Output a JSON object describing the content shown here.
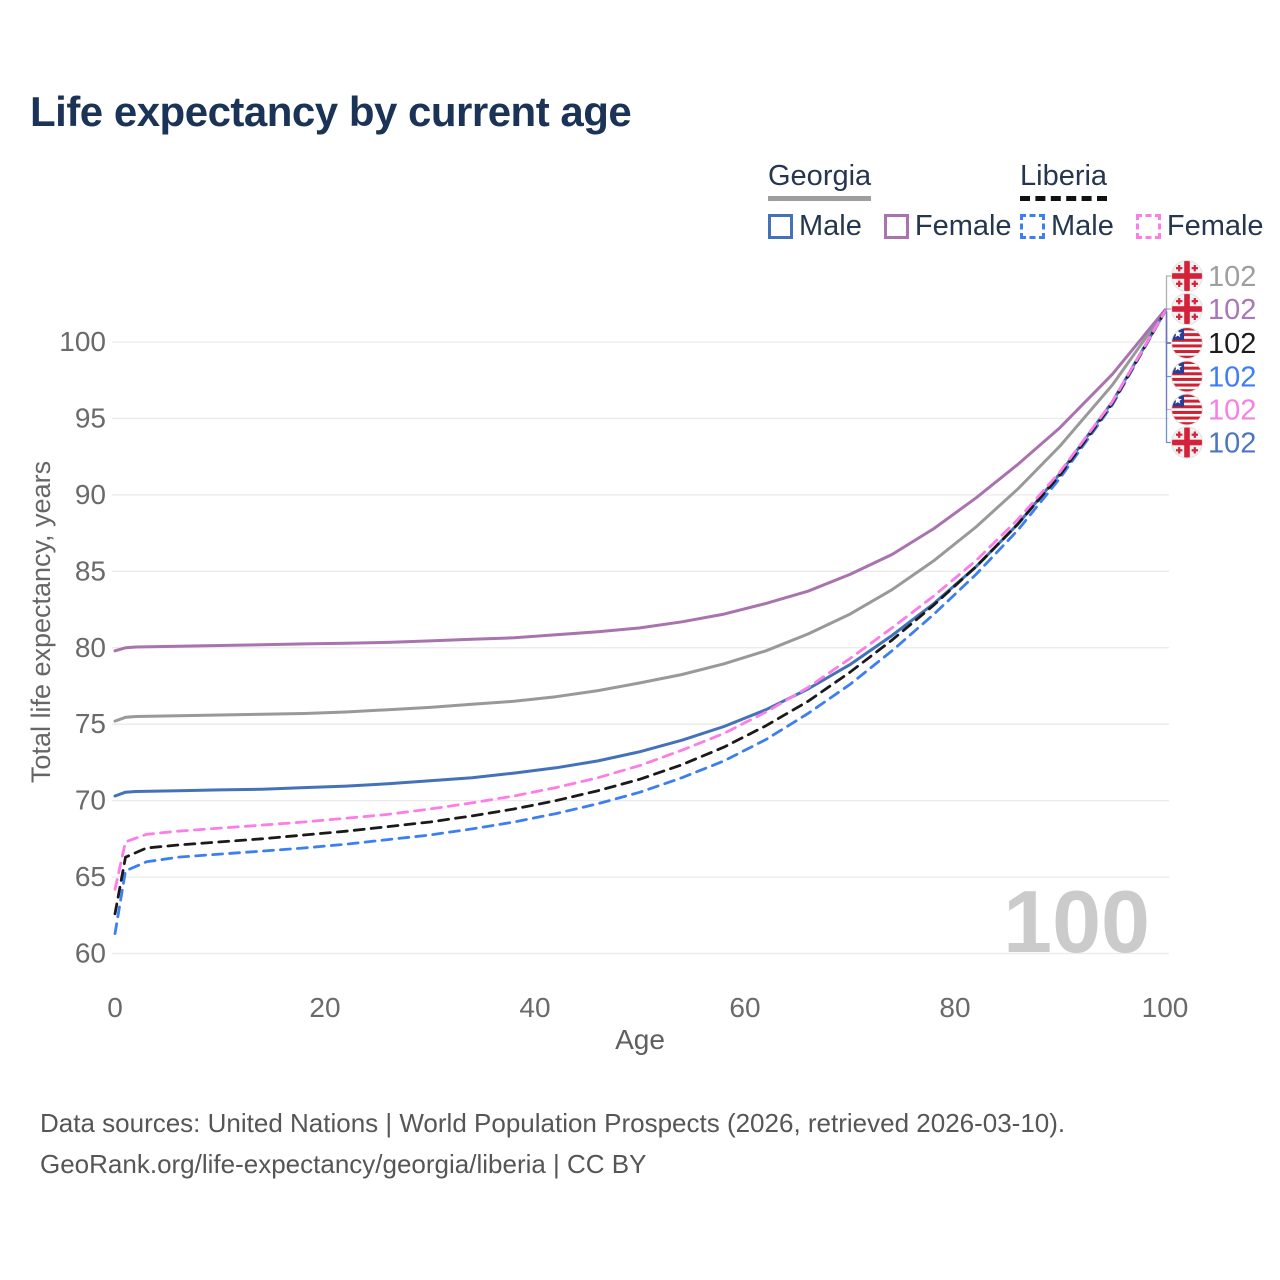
{
  "title": "Life expectancy by current age",
  "legend": {
    "groups": [
      {
        "country": "Georgia",
        "line_style": "solid",
        "rule_color": "#9e9e9e",
        "items": [
          {
            "label": "Male",
            "color": "#4472b8"
          },
          {
            "label": "Female",
            "color": "#a873ae"
          }
        ]
      },
      {
        "country": "Liberia",
        "line_style": "dashed",
        "rule_color": "#111111",
        "items": [
          {
            "label": "Male",
            "color": "#3d7ef0"
          },
          {
            "label": "Female",
            "color": "#fb7de8"
          }
        ]
      }
    ]
  },
  "watermark": "100",
  "footer": {
    "line1": "Data sources: United Nations | World Population Prospects (2026, retrieved 2026-03-10).",
    "line2": "GeoRank.org/life-expectancy/georgia/liberia | CC BY"
  },
  "chart_data": {
    "type": "line",
    "title": "Life expectancy by current age",
    "xlabel": "Age",
    "ylabel": "Total life expectancy, years",
    "xlim": [
      0,
      100
    ],
    "ylim": [
      58.5,
      103.5
    ],
    "xticks": [
      0,
      20,
      40,
      60,
      80,
      100
    ],
    "yticks": [
      60,
      65,
      70,
      75,
      80,
      85,
      90,
      95,
      100
    ],
    "grid": true,
    "legend_position": "top-right",
    "series": [
      {
        "id": "georgia-all",
        "name": "Georgia (both sexes)",
        "country": "Georgia",
        "sex": "Both",
        "color": "#999999",
        "dash": "solid",
        "points": [
          [
            0,
            75.2
          ],
          [
            1,
            75.45
          ],
          [
            2,
            75.5
          ],
          [
            6,
            75.55
          ],
          [
            10,
            75.6
          ],
          [
            14,
            75.65
          ],
          [
            18,
            75.7
          ],
          [
            22,
            75.8
          ],
          [
            26,
            75.95
          ],
          [
            30,
            76.1
          ],
          [
            34,
            76.3
          ],
          [
            38,
            76.5
          ],
          [
            42,
            76.8
          ],
          [
            46,
            77.2
          ],
          [
            50,
            77.7
          ],
          [
            54,
            78.25
          ],
          [
            58,
            78.95
          ],
          [
            62,
            79.8
          ],
          [
            66,
            80.9
          ],
          [
            70,
            82.2
          ],
          [
            74,
            83.8
          ],
          [
            78,
            85.7
          ],
          [
            82,
            87.9
          ],
          [
            86,
            90.4
          ],
          [
            90,
            93.2
          ],
          [
            95,
            97.2
          ],
          [
            100,
            102.05
          ]
        ]
      },
      {
        "id": "georgia-female",
        "name": "Georgia Female",
        "country": "Georgia",
        "sex": "Female",
        "color": "#a873ae",
        "dash": "solid",
        "points": [
          [
            0,
            79.8
          ],
          [
            1,
            80.0
          ],
          [
            2,
            80.05
          ],
          [
            6,
            80.1
          ],
          [
            10,
            80.15
          ],
          [
            14,
            80.2
          ],
          [
            18,
            80.25
          ],
          [
            22,
            80.3
          ],
          [
            26,
            80.35
          ],
          [
            30,
            80.45
          ],
          [
            34,
            80.55
          ],
          [
            38,
            80.65
          ],
          [
            42,
            80.85
          ],
          [
            46,
            81.05
          ],
          [
            50,
            81.3
          ],
          [
            54,
            81.7
          ],
          [
            58,
            82.2
          ],
          [
            62,
            82.9
          ],
          [
            66,
            83.7
          ],
          [
            70,
            84.8
          ],
          [
            74,
            86.1
          ],
          [
            78,
            87.8
          ],
          [
            82,
            89.8
          ],
          [
            86,
            92.0
          ],
          [
            90,
            94.4
          ],
          [
            95,
            97.9
          ],
          [
            100,
            102.1
          ]
        ]
      },
      {
        "id": "georgia-male",
        "name": "Georgia Male",
        "country": "Georgia",
        "sex": "Male",
        "color": "#4472b8",
        "dash": "solid",
        "points": [
          [
            0,
            70.3
          ],
          [
            1,
            70.55
          ],
          [
            2,
            70.6
          ],
          [
            6,
            70.65
          ],
          [
            10,
            70.7
          ],
          [
            14,
            70.75
          ],
          [
            18,
            70.85
          ],
          [
            22,
            70.95
          ],
          [
            26,
            71.1
          ],
          [
            30,
            71.3
          ],
          [
            34,
            71.5
          ],
          [
            38,
            71.8
          ],
          [
            42,
            72.15
          ],
          [
            46,
            72.6
          ],
          [
            50,
            73.2
          ],
          [
            54,
            73.95
          ],
          [
            58,
            74.85
          ],
          [
            62,
            75.95
          ],
          [
            66,
            77.3
          ],
          [
            70,
            78.9
          ],
          [
            74,
            80.8
          ],
          [
            78,
            82.9
          ],
          [
            82,
            85.3
          ],
          [
            86,
            88.1
          ],
          [
            90,
            91.4
          ],
          [
            95,
            96.1
          ],
          [
            100,
            102.0
          ]
        ]
      },
      {
        "id": "liberia-male",
        "name": "Liberia Male",
        "country": "Liberia",
        "sex": "Male",
        "color": "#3d7ef0",
        "dash": "dashed",
        "points": [
          [
            0,
            61.3
          ],
          [
            1,
            65.4
          ],
          [
            3,
            66.0
          ],
          [
            6,
            66.3
          ],
          [
            10,
            66.5
          ],
          [
            14,
            66.7
          ],
          [
            18,
            66.9
          ],
          [
            22,
            67.15
          ],
          [
            26,
            67.45
          ],
          [
            30,
            67.75
          ],
          [
            34,
            68.15
          ],
          [
            38,
            68.6
          ],
          [
            42,
            69.15
          ],
          [
            46,
            69.8
          ],
          [
            50,
            70.55
          ],
          [
            54,
            71.5
          ],
          [
            58,
            72.6
          ],
          [
            62,
            74.0
          ],
          [
            66,
            75.7
          ],
          [
            70,
            77.6
          ],
          [
            74,
            79.8
          ],
          [
            78,
            82.2
          ],
          [
            82,
            84.8
          ],
          [
            86,
            87.7
          ],
          [
            90,
            91.1
          ],
          [
            95,
            95.9
          ],
          [
            100,
            102.0
          ]
        ]
      },
      {
        "id": "liberia-all",
        "name": "Liberia (both sexes)",
        "country": "Liberia",
        "sex": "Both",
        "color": "#1a1a1a",
        "dash": "dashed",
        "points": [
          [
            0,
            62.6
          ],
          [
            1,
            66.3
          ],
          [
            3,
            66.9
          ],
          [
            6,
            67.1
          ],
          [
            10,
            67.3
          ],
          [
            14,
            67.5
          ],
          [
            18,
            67.75
          ],
          [
            22,
            68.0
          ],
          [
            26,
            68.3
          ],
          [
            30,
            68.6
          ],
          [
            34,
            69.0
          ],
          [
            38,
            69.45
          ],
          [
            42,
            70.0
          ],
          [
            46,
            70.65
          ],
          [
            50,
            71.4
          ],
          [
            54,
            72.35
          ],
          [
            58,
            73.5
          ],
          [
            62,
            74.9
          ],
          [
            66,
            76.5
          ],
          [
            70,
            78.4
          ],
          [
            74,
            80.5
          ],
          [
            78,
            82.8
          ],
          [
            82,
            85.3
          ],
          [
            86,
            88.1
          ],
          [
            90,
            91.3
          ],
          [
            95,
            96.0
          ],
          [
            100,
            102.0
          ]
        ]
      },
      {
        "id": "liberia-female",
        "name": "Liberia Female",
        "country": "Liberia",
        "sex": "Female",
        "color": "#fb7de8",
        "dash": "dashed",
        "points": [
          [
            0,
            64.2
          ],
          [
            1,
            67.3
          ],
          [
            3,
            67.8
          ],
          [
            6,
            68.0
          ],
          [
            10,
            68.2
          ],
          [
            14,
            68.4
          ],
          [
            18,
            68.6
          ],
          [
            22,
            68.85
          ],
          [
            26,
            69.1
          ],
          [
            30,
            69.45
          ],
          [
            34,
            69.85
          ],
          [
            38,
            70.3
          ],
          [
            42,
            70.85
          ],
          [
            46,
            71.5
          ],
          [
            50,
            72.3
          ],
          [
            54,
            73.3
          ],
          [
            58,
            74.4
          ],
          [
            62,
            75.8
          ],
          [
            66,
            77.4
          ],
          [
            70,
            79.3
          ],
          [
            74,
            81.3
          ],
          [
            78,
            83.4
          ],
          [
            82,
            85.7
          ],
          [
            86,
            88.4
          ],
          [
            90,
            91.5
          ],
          [
            95,
            96.1
          ],
          [
            100,
            102.0
          ]
        ]
      }
    ],
    "end_labels": [
      {
        "series": "georgia-all",
        "text": "102",
        "color": "#9e9e9e",
        "flag": "georgia"
      },
      {
        "series": "georgia-female",
        "text": "102",
        "color": "#a878b8",
        "flag": "georgia"
      },
      {
        "series": "liberia-all",
        "text": "102",
        "color": "#1c1c1c",
        "flag": "liberia"
      },
      {
        "series": "liberia-male",
        "text": "102",
        "color": "#3d7ef5",
        "flag": "liberia"
      },
      {
        "series": "liberia-female",
        "text": "102",
        "color": "#f87fe8",
        "flag": "liberia"
      },
      {
        "series": "georgia-male",
        "text": "102",
        "color": "#4c76c0",
        "flag": "georgia"
      }
    ]
  }
}
